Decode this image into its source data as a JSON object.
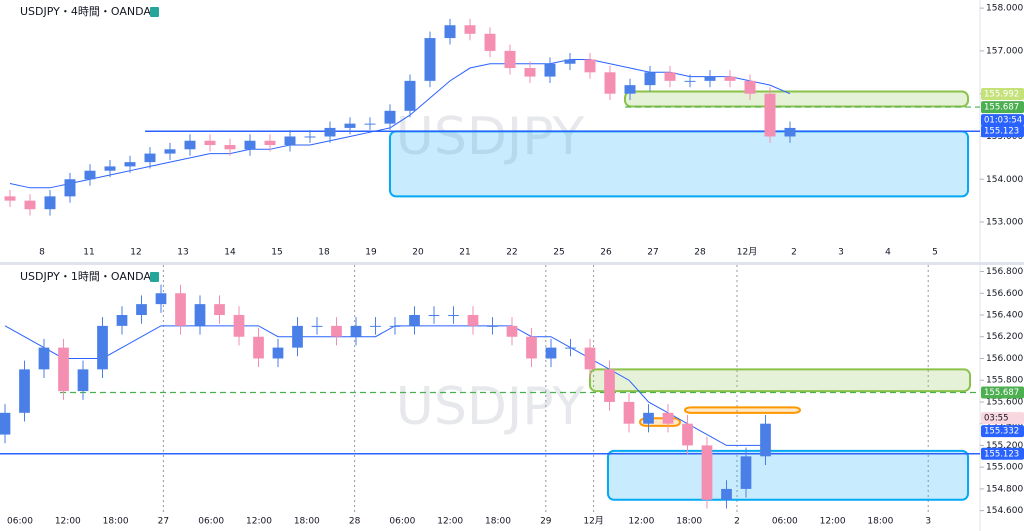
{
  "chart_data": [
    {
      "type": "candlestick",
      "title": "USDJPY・4時間・OANDA",
      "watermark": "USDJPY",
      "categories": [
        "8",
        "11",
        "12",
        "13",
        "14",
        "15",
        "18",
        "19",
        "20",
        "21",
        "22",
        "25",
        "26",
        "27",
        "28",
        "12月",
        "2",
        "3",
        "4",
        "5"
      ],
      "up_color": "#4a7fe8",
      "down_color": "#f48fb1",
      "open": [
        153.6,
        153.5,
        153.3,
        153.6,
        154.0,
        154.2,
        154.3,
        154.4,
        154.6,
        154.7,
        154.9,
        154.8,
        154.7,
        154.9,
        154.8,
        155.0,
        155.0,
        155.2,
        155.3,
        155.3,
        155.6,
        156.3,
        157.3,
        157.6,
        157.4,
        157.0,
        156.6,
        156.4,
        156.7,
        156.8,
        156.5,
        156.0,
        156.2,
        156.5,
        156.3,
        156.3,
        156.4,
        156.3,
        156.0,
        155.0
      ],
      "high": [
        153.75,
        153.65,
        153.75,
        154.15,
        154.35,
        154.45,
        154.55,
        154.75,
        154.85,
        155.05,
        155.05,
        154.95,
        155.05,
        155.05,
        155.15,
        155.15,
        155.35,
        155.45,
        155.45,
        155.75,
        156.45,
        157.45,
        157.75,
        157.75,
        157.55,
        157.15,
        156.75,
        156.85,
        156.95,
        156.95,
        156.65,
        156.35,
        156.65,
        156.65,
        156.45,
        156.55,
        156.55,
        156.45,
        156.15,
        155.35
      ],
      "low": [
        153.35,
        153.15,
        153.15,
        153.45,
        153.85,
        154.05,
        154.15,
        154.25,
        154.45,
        154.55,
        154.65,
        154.55,
        154.55,
        154.65,
        154.65,
        154.85,
        154.85,
        155.05,
        155.15,
        155.15,
        155.45,
        156.15,
        157.15,
        157.25,
        156.85,
        156.45,
        156.25,
        156.25,
        156.55,
        156.35,
        155.85,
        155.85,
        156.05,
        156.15,
        156.15,
        156.15,
        156.15,
        155.85,
        154.85,
        154.85
      ],
      "close": [
        153.5,
        153.3,
        153.6,
        154.0,
        154.2,
        154.3,
        154.4,
        154.6,
        154.7,
        154.9,
        154.8,
        154.7,
        154.9,
        154.8,
        155.0,
        155.0,
        155.2,
        155.3,
        155.3,
        155.6,
        156.3,
        157.3,
        157.6,
        157.4,
        157.0,
        156.6,
        156.4,
        156.7,
        156.8,
        156.5,
        156.0,
        156.2,
        156.5,
        156.3,
        156.3,
        156.4,
        156.3,
        156.0,
        155.0,
        155.2
      ],
      "ma": [
        153.9,
        153.8,
        153.8,
        153.9,
        154.0,
        154.1,
        154.2,
        154.3,
        154.4,
        154.5,
        154.6,
        154.6,
        154.7,
        154.7,
        154.8,
        154.8,
        154.9,
        155.0,
        155.1,
        155.2,
        155.5,
        155.9,
        156.3,
        156.6,
        156.7,
        156.7,
        156.7,
        156.7,
        156.8,
        156.8,
        156.7,
        156.6,
        156.5,
        156.5,
        156.4,
        156.4,
        156.4,
        156.3,
        156.2,
        156.0
      ],
      "ma_color": "#2962ff",
      "ylim": [
        152.58,
        158.19
      ],
      "yticks": [
        {
          "value": 153,
          "label": "153.000"
        },
        {
          "value": 154,
          "label": "154.000"
        },
        {
          "value": 155,
          "label": "155.000"
        },
        {
          "value": 156,
          "label": "156.000"
        },
        {
          "value": 157,
          "label": "157.000"
        },
        {
          "value": 158,
          "label": "158.000"
        }
      ],
      "hlines": [
        {
          "value": 155.123,
          "color": "#2962ff",
          "dash": false
        },
        {
          "value": 155.687,
          "color": "#4caf50",
          "dash": true
        }
      ],
      "zones": [
        {
          "top": 156.05,
          "bottom": 155.7,
          "color": "#8bc34a"
        },
        {
          "top": 155.12,
          "bottom": 153.6,
          "color": "#03a9f4"
        }
      ],
      "price_labels": [
        {
          "value": 155.992,
          "color": "#c5e17a"
        },
        {
          "value": 155.687,
          "color": "#4caf50"
        },
        {
          "value": 155.123,
          "color": "#2962ff"
        }
      ],
      "countdown": "01:03:54"
    },
    {
      "type": "candlestick",
      "title": "USDJPY・1時間・OANDA",
      "watermark": "USDJPY",
      "categories": [
        "06:00",
        "12:00",
        "18:00",
        "27",
        "06:00",
        "12:00",
        "18:00",
        "28",
        "06:00",
        "12:00",
        "18:00",
        "29",
        "12月",
        "12:00",
        "18:00",
        "2",
        "06:00",
        "12:00",
        "18:00",
        "3"
      ],
      "up_color": "#4a7fe8",
      "down_color": "#f48fb1",
      "open": [
        155.3,
        155.5,
        155.9,
        156.1,
        155.7,
        155.9,
        156.3,
        156.4,
        156.5,
        156.6,
        156.3,
        156.5,
        156.4,
        156.2,
        156.0,
        156.1,
        156.3,
        156.3,
        156.2,
        156.3,
        156.3,
        156.3,
        156.4,
        156.4,
        156.4,
        156.3,
        156.3,
        156.2,
        156.0,
        156.1,
        156.1,
        155.9,
        155.6,
        155.4,
        155.5,
        155.4,
        155.2,
        154.7,
        154.8,
        155.1
      ],
      "high": [
        155.58,
        155.98,
        156.18,
        156.18,
        155.98,
        156.38,
        156.48,
        156.58,
        156.68,
        156.68,
        156.58,
        156.58,
        156.48,
        156.28,
        156.18,
        156.38,
        156.38,
        156.38,
        156.38,
        156.38,
        156.38,
        156.48,
        156.48,
        156.48,
        156.48,
        156.38,
        156.38,
        156.28,
        156.18,
        156.18,
        156.18,
        155.98,
        155.68,
        155.58,
        155.58,
        155.48,
        155.28,
        154.88,
        155.18,
        155.48
      ],
      "low": [
        155.22,
        155.42,
        155.82,
        155.62,
        155.62,
        155.82,
        156.22,
        156.32,
        156.42,
        156.22,
        156.22,
        156.32,
        156.12,
        155.92,
        155.92,
        156.02,
        156.22,
        156.12,
        156.12,
        156.22,
        156.22,
        156.22,
        156.32,
        156.32,
        156.22,
        156.22,
        156.12,
        155.92,
        155.92,
        156.02,
        155.82,
        155.52,
        155.32,
        155.32,
        155.32,
        155.12,
        154.62,
        154.62,
        154.72,
        155.02
      ],
      "close": [
        155.5,
        155.9,
        156.1,
        155.7,
        155.9,
        156.3,
        156.4,
        156.5,
        156.6,
        156.3,
        156.5,
        156.4,
        156.2,
        156.0,
        156.1,
        156.3,
        156.3,
        156.2,
        156.3,
        156.3,
        156.3,
        156.4,
        156.4,
        156.4,
        156.3,
        156.3,
        156.2,
        156.0,
        156.1,
        156.1,
        155.9,
        155.6,
        155.4,
        155.5,
        155.4,
        155.2,
        154.7,
        154.8,
        155.1,
        155.4
      ],
      "ma": [
        156.3,
        156.2,
        156.1,
        156.0,
        156.0,
        156.0,
        156.1,
        156.2,
        156.3,
        156.3,
        156.3,
        156.3,
        156.3,
        156.3,
        156.2,
        156.2,
        156.2,
        156.2,
        156.2,
        156.2,
        156.3,
        156.3,
        156.3,
        156.3,
        156.3,
        156.3,
        156.3,
        156.2,
        156.2,
        156.1,
        156.0,
        155.9,
        155.8,
        155.6,
        155.5,
        155.4,
        155.3,
        155.2,
        155.2,
        155.2
      ],
      "ma_color": "#2962ff",
      "ylim": [
        154.56,
        156.86
      ],
      "yticks": [
        {
          "value": 154.6,
          "label": "154.600"
        },
        {
          "value": 154.8,
          "label": "154.800"
        },
        {
          "value": 155,
          "label": "155.000"
        },
        {
          "value": 155.2,
          "label": "155.200"
        },
        {
          "value": 155.4,
          "label": "155.400"
        },
        {
          "value": 155.6,
          "label": "155.600"
        },
        {
          "value": 155.8,
          "label": "155.800"
        },
        {
          "value": 156,
          "label": "156.000"
        },
        {
          "value": 156.2,
          "label": "156.200"
        },
        {
          "value": 156.4,
          "label": "156.400"
        },
        {
          "value": 156.6,
          "label": "156.600"
        },
        {
          "value": 156.8,
          "label": "156.800"
        }
      ],
      "hlines": [
        {
          "value": 155.123,
          "color": "#2962ff",
          "dash": false
        },
        {
          "value": 155.687,
          "color": "#4caf50",
          "dash": true
        }
      ],
      "zones": [
        {
          "top": 155.9,
          "bottom": 155.7,
          "color": "#8bc34a"
        },
        {
          "top": 155.15,
          "bottom": 154.7,
          "color": "#03a9f4"
        },
        {
          "top": 155.55,
          "bottom": 155.5,
          "color": "#ff9800"
        },
        {
          "top": 155.45,
          "bottom": 155.38,
          "color": "#ff9800"
        }
      ],
      "price_labels": [
        {
          "value": 155.687,
          "color": "#4caf50"
        },
        {
          "value": 155.332,
          "color": "#2962ff"
        },
        {
          "value": 155.123,
          "color": "#2962ff"
        }
      ],
      "countdown": "03:55"
    }
  ]
}
